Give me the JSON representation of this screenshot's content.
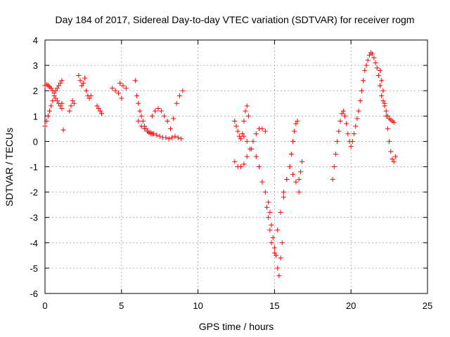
{
  "chart_data": {
    "type": "scatter",
    "title": "Day 184 of 2017, Sidereal Day-to-day VTEC variation (SDTVAR) for receiver rogm",
    "xlabel": "GPS time / hours",
    "ylabel": "SDTVAR / TECUs",
    "xlim": [
      0,
      25
    ],
    "ylim": [
      -6,
      4
    ],
    "xticks": [
      0,
      5,
      10,
      15,
      20,
      25
    ],
    "yticks": [
      -6,
      -5,
      -4,
      -3,
      -2,
      -1,
      0,
      1,
      2,
      3,
      4
    ],
    "grid": true,
    "marker": "+",
    "marker_color": "#ff0000",
    "series": [
      {
        "name": "SDTVAR",
        "x": [
          0.0,
          0.1,
          0.2,
          0.3,
          0.4,
          0.5,
          0.6,
          0.7,
          0.8,
          0.9,
          1.0,
          1.1,
          1.2,
          0.0,
          0.1,
          0.2,
          0.3,
          0.4,
          0.5,
          0.6,
          0.7,
          0.8,
          0.9,
          1.0,
          1.1,
          1.1,
          1.6,
          1.7,
          1.8,
          1.9,
          2.2,
          2.3,
          2.4,
          2.5,
          2.6,
          2.7,
          2.8,
          2.9,
          3.0,
          3.4,
          3.5,
          3.6,
          3.7,
          4.4,
          4.6,
          4.8,
          5.0,
          4.9,
          5.1,
          5.3,
          5.9,
          6.0,
          6.1,
          6.2,
          6.3,
          6.4,
          6.5,
          6.6,
          6.7,
          6.8,
          6.9,
          7.0,
          6.1,
          6.3,
          6.5,
          6.7,
          6.9,
          7.1,
          7.3,
          7.5,
          7.7,
          7.9,
          8.1,
          8.3,
          8.5,
          8.7,
          8.9,
          7.0,
          7.2,
          7.4,
          7.6,
          7.8,
          8.0,
          8.2,
          8.4,
          8.6,
          8.8,
          9.0,
          12.4,
          12.5,
          12.6,
          12.7,
          12.8,
          12.9,
          13.0,
          13.1,
          13.2,
          13.3,
          12.4,
          12.6,
          12.8,
          13.0,
          13.2,
          13.4,
          13.6,
          13.8,
          14.0,
          14.2,
          14.4,
          13.0,
          13.2,
          13.5,
          13.8,
          14.0,
          14.2,
          14.4,
          14.6,
          14.7,
          14.8,
          14.9,
          15.0,
          15.1,
          15.2,
          15.3,
          15.4,
          15.5,
          14.5,
          14.6,
          14.7,
          14.8,
          15.0,
          15.2,
          15.4,
          15.6,
          15.8,
          16.0,
          16.1,
          16.2,
          16.3,
          16.4,
          16.5,
          16.6,
          16.7,
          15.6,
          15.8,
          16.0,
          16.2,
          16.4,
          16.6,
          16.8,
          18.8,
          18.9,
          19.0,
          19.1,
          19.2,
          19.3,
          19.4,
          19.5,
          19.6,
          19.7,
          19.8,
          19.9,
          20.0,
          20.1,
          20.2,
          20.3,
          20.4,
          20.5,
          20.6,
          20.7,
          20.8,
          20.9,
          21.0,
          21.1,
          21.2,
          21.3,
          21.4,
          21.5,
          21.6,
          21.7,
          21.8,
          21.9,
          22.0,
          22.1,
          22.2,
          22.3,
          22.4,
          22.5,
          22.6,
          22.7,
          22.8,
          21.9,
          22.0,
          22.1,
          22.2,
          22.3,
          22.4,
          22.5,
          22.6,
          22.7,
          22.8,
          22.9
        ],
        "y": [
          2.2,
          2.25,
          2.2,
          2.15,
          2.1,
          2.0,
          1.9,
          1.7,
          1.6,
          1.5,
          1.4,
          1.3,
          0.45,
          0.6,
          0.8,
          1.0,
          1.2,
          1.4,
          1.6,
          1.8,
          2.0,
          2.1,
          2.2,
          2.3,
          2.4,
          1.5,
          1.2,
          1.4,
          1.6,
          1.5,
          2.6,
          2.4,
          2.2,
          2.3,
          2.5,
          2.0,
          1.8,
          1.7,
          1.8,
          1.4,
          1.3,
          1.2,
          1.1,
          2.1,
          2.0,
          1.9,
          1.7,
          2.3,
          2.2,
          2.1,
          2.4,
          1.8,
          1.5,
          1.2,
          1.0,
          0.8,
          0.6,
          0.5,
          0.4,
          0.35,
          0.3,
          0.3,
          0.8,
          0.6,
          0.5,
          0.4,
          0.35,
          0.3,
          0.25,
          0.2,
          0.15,
          0.15,
          0.1,
          0.15,
          0.2,
          0.15,
          0.1,
          1.0,
          1.2,
          1.3,
          1.2,
          1.0,
          0.8,
          0.5,
          0.9,
          1.5,
          1.8,
          2.0,
          0.8,
          0.6,
          0.4,
          0.2,
          0.1,
          0.3,
          0.8,
          1.2,
          1.4,
          1.0,
          -0.8,
          -1.0,
          -1.0,
          -0.9,
          -0.6,
          -0.3,
          0.0,
          0.3,
          0.5,
          0.5,
          0.4,
          0.2,
          0.0,
          -0.3,
          -0.6,
          -1.0,
          -1.6,
          -2.0,
          -2.4,
          -2.8,
          -3.3,
          -3.8,
          -4.2,
          -4.5,
          -5.0,
          -5.3,
          -4.6,
          -4.0,
          -2.6,
          -3.0,
          -3.5,
          -4.0,
          -4.4,
          -3.5,
          -2.8,
          -2.2,
          -1.5,
          -1.0,
          -0.5,
          0.0,
          0.4,
          0.7,
          0.8,
          -1.5,
          -1.2,
          -2.0,
          -1.5,
          -1.0,
          -1.3,
          -1.6,
          -2.0,
          -0.8,
          -1.5,
          -1.0,
          -0.5,
          0.0,
          0.4,
          0.8,
          1.1,
          1.2,
          1.0,
          0.7,
          0.3,
          0.0,
          -0.2,
          0.0,
          0.3,
          0.6,
          0.9,
          1.2,
          1.6,
          2.0,
          2.4,
          2.8,
          3.0,
          3.2,
          3.4,
          3.5,
          3.45,
          3.3,
          3.1,
          2.9,
          2.6,
          2.2,
          1.8,
          1.6,
          1.4,
          1.2,
          1.0,
          0.9,
          0.85,
          0.8,
          0.75,
          2.8,
          2.4,
          2.0,
          1.5,
          1.0,
          0.5,
          0.0,
          -0.4,
          -0.7,
          -0.8,
          -0.6
        ]
      }
    ]
  }
}
